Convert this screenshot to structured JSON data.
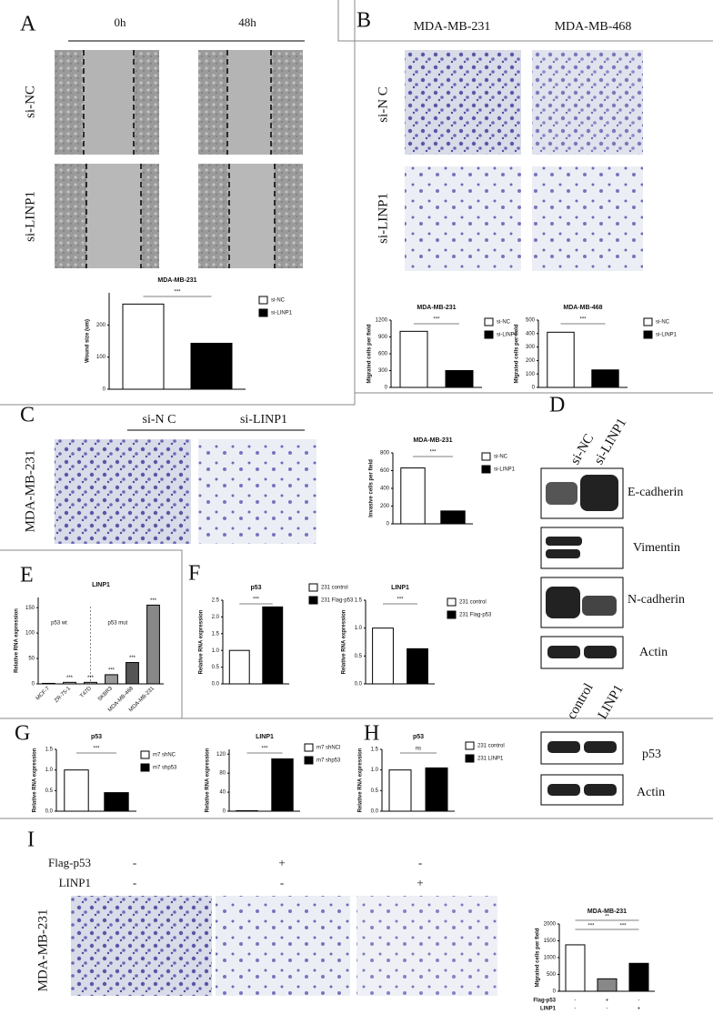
{
  "panels": {
    "A": {
      "letter": "A",
      "columns": [
        "0h",
        "48h"
      ],
      "rows": [
        "si-NC",
        "si-LINP1"
      ]
    },
    "B": {
      "letter": "B",
      "columns": [
        "MDA-MB-231",
        "MDA-MB-468"
      ],
      "rows": [
        "si-N C",
        "si-LINP1"
      ]
    },
    "C": {
      "letter": "C",
      "columns": [
        "si-N C",
        "si-LINP1"
      ],
      "row": "MDA-MB-231"
    },
    "D": {
      "letter": "D",
      "lanes": [
        "si-NC",
        "si-LINP1"
      ],
      "proteins": [
        "E-cadherin",
        "Vimentin",
        "N-cadherin",
        "Actin"
      ]
    },
    "E": {
      "letter": "E"
    },
    "F": {
      "letter": "F"
    },
    "G": {
      "letter": "G"
    },
    "H": {
      "letter": "H",
      "lanes": [
        "control",
        "LINP1"
      ],
      "proteins": [
        "p53",
        "Actin"
      ]
    },
    "I": {
      "letter": "I",
      "row": "MDA-MB-231",
      "conditions": [
        {
          "name": "Flag-p53",
          "signs": [
            "-",
            "+",
            "-"
          ]
        },
        {
          "name": "LINP1",
          "signs": [
            "-",
            "-",
            "+"
          ]
        }
      ]
    }
  },
  "chart_data": [
    {
      "type": "bar",
      "title": "MDA-MB-231",
      "ylabel": "Wound size (um)",
      "categories": [
        null
      ],
      "series": [
        {
          "name": "si-NC",
          "color": "#ffffff",
          "values": [
            265
          ]
        },
        {
          "name": "si-LINP1",
          "color": "#000000",
          "values": [
            143
          ]
        }
      ],
      "ylim": [
        0,
        300
      ],
      "yticks": [
        0,
        100,
        200
      ],
      "annotations": [
        "***"
      ]
    },
    {
      "type": "bar",
      "title": "MDA-MB-231",
      "ylabel": "Migrated cells per field",
      "categories": [
        null
      ],
      "series": [
        {
          "name": "si-NC",
          "color": "#ffffff",
          "values": [
            1000
          ]
        },
        {
          "name": "si-LINP1",
          "color": "#000000",
          "values": [
            300
          ]
        }
      ],
      "ylim": [
        0,
        1200
      ],
      "yticks": [
        0,
        300,
        600,
        900,
        1200
      ],
      "annotations": [
        "***"
      ]
    },
    {
      "type": "bar",
      "title": "MDA-MB-468",
      "ylabel": "Migrated cells per field",
      "categories": [
        null
      ],
      "series": [
        {
          "name": "si-NC",
          "color": "#ffffff",
          "values": [
            410
          ]
        },
        {
          "name": "si-LINP1",
          "color": "#000000",
          "values": [
            130
          ]
        }
      ],
      "ylim": [
        0,
        500
      ],
      "yticks": [
        0,
        100,
        200,
        300,
        400,
        500
      ],
      "annotations": [
        "***"
      ]
    },
    {
      "type": "bar",
      "title": "MDA-MB-231",
      "ylabel": "Invasive cells per field",
      "categories": [
        null
      ],
      "series": [
        {
          "name": "si-NC",
          "color": "#ffffff",
          "values": [
            630
          ]
        },
        {
          "name": "si-LINP1",
          "color": "#000000",
          "values": [
            145
          ]
        }
      ],
      "ylim": [
        0,
        800
      ],
      "yticks": [
        0,
        200,
        400,
        600,
        800
      ],
      "annotations": [
        "***"
      ]
    },
    {
      "type": "bar",
      "title": "LINP1",
      "ylabel": "Relative RNA expression",
      "categories": [
        "MCF-7",
        "ZR-75-1",
        "T47D",
        "SKBR3",
        "MDA-MB-468",
        "MDA-MB-231"
      ],
      "values": [
        1,
        3,
        3,
        18,
        42,
        155
      ],
      "colors": [
        "#ffffff",
        "#dddddd",
        "#bbbbbb",
        "#999999",
        "#555555",
        "#888888"
      ],
      "ylim": [
        0,
        170
      ],
      "yticks": [
        0,
        50,
        100,
        150
      ],
      "group_labels": [
        "p53 wt",
        "p53 mut"
      ],
      "annotations": [
        "***",
        "***",
        "***",
        "***",
        "***"
      ]
    },
    {
      "type": "bar",
      "title": "p53",
      "ylabel": "Relative RNA expression",
      "categories": [
        null
      ],
      "series": [
        {
          "name": "231 control",
          "color": "#ffffff",
          "values": [
            1.0
          ]
        },
        {
          "name": "231 Flag-p53",
          "color": "#000000",
          "values": [
            2.3
          ]
        }
      ],
      "ylim": [
        0,
        2.5
      ],
      "yticks": [
        {
          "value": 0,
          "label": "0.0"
        },
        0.5,
        {
          "value": 1,
          "label": "1.0"
        },
        1.5,
        {
          "value": 2,
          "label": "2.0"
        },
        2.5
      ],
      "annotations": [
        "***"
      ]
    },
    {
      "type": "bar",
      "title": "LINP1",
      "ylabel": "Relative RNA expression",
      "categories": [
        null
      ],
      "series": [
        {
          "name": "231 control",
          "color": "#ffffff",
          "values": [
            1.0
          ]
        },
        {
          "name": "231 Flag-p53",
          "color": "#000000",
          "values": [
            0.63
          ]
        }
      ],
      "ylim": [
        0,
        1.5
      ],
      "yticks": [
        {
          "value": 0,
          "label": "0.0"
        },
        0.5,
        {
          "value": 1,
          "label": "1.0"
        },
        1.5
      ],
      "annotations": [
        "***"
      ]
    },
    {
      "type": "bar",
      "title": "p53",
      "ylabel": "Relative RNA expression",
      "categories": [
        null
      ],
      "series": [
        {
          "name": "m7 shNC",
          "color": "#ffffff",
          "values": [
            1.0
          ]
        },
        {
          "name": "m7 shp53",
          "color": "#000000",
          "values": [
            0.45
          ]
        }
      ],
      "ylim": [
        0,
        1.5
      ],
      "yticks": [
        {
          "value": 0,
          "label": "0.0"
        },
        0.5,
        {
          "value": 1,
          "label": "1.0"
        },
        1.5
      ],
      "annotations": [
        "***"
      ]
    },
    {
      "type": "bar",
      "title": "LINP1",
      "ylabel": "Relative RNA expression",
      "categories": [
        null
      ],
      "series": [
        {
          "name": "m7 shNCl",
          "color": "#ffffff",
          "values": [
            1
          ]
        },
        {
          "name": "m7 shp53",
          "color": "#000000",
          "values": [
            110
          ]
        }
      ],
      "ylim": [
        0,
        130
      ],
      "yticks": [
        0,
        40,
        80,
        120
      ],
      "annotations": [
        "***"
      ]
    },
    {
      "type": "bar",
      "title": "p53",
      "ylabel": "Relative RNA expression",
      "categories": [
        null
      ],
      "series": [
        {
          "name": "231 control",
          "color": "#ffffff",
          "values": [
            1.0
          ]
        },
        {
          "name": "231 LINP1",
          "color": "#000000",
          "values": [
            1.05
          ]
        }
      ],
      "ylim": [
        0,
        1.5
      ],
      "yticks": [
        {
          "value": 0,
          "label": "0.0"
        },
        0.5,
        {
          "value": 1,
          "label": "1.0"
        },
        1.5
      ],
      "annotations": [
        "ns"
      ]
    },
    {
      "type": "bar",
      "title": "MDA-MB-231",
      "ylabel": "Migrated cells per field",
      "categories": [
        null,
        null,
        null
      ],
      "values": [
        1380,
        370,
        830
      ],
      "colors": [
        "#ffffff",
        "#888888",
        "#000000"
      ],
      "ylim": [
        0,
        2000
      ],
      "yticks": [
        0,
        500,
        1000,
        1500,
        2000
      ],
      "annotations": [
        "**",
        "***",
        "***"
      ],
      "x_rows": [
        {
          "name": "Flag-p53",
          "labels": [
            "-",
            "+",
            "-"
          ]
        },
        {
          "name": "LINP1",
          "labels": [
            "-",
            "-",
            "+"
          ]
        }
      ]
    }
  ]
}
